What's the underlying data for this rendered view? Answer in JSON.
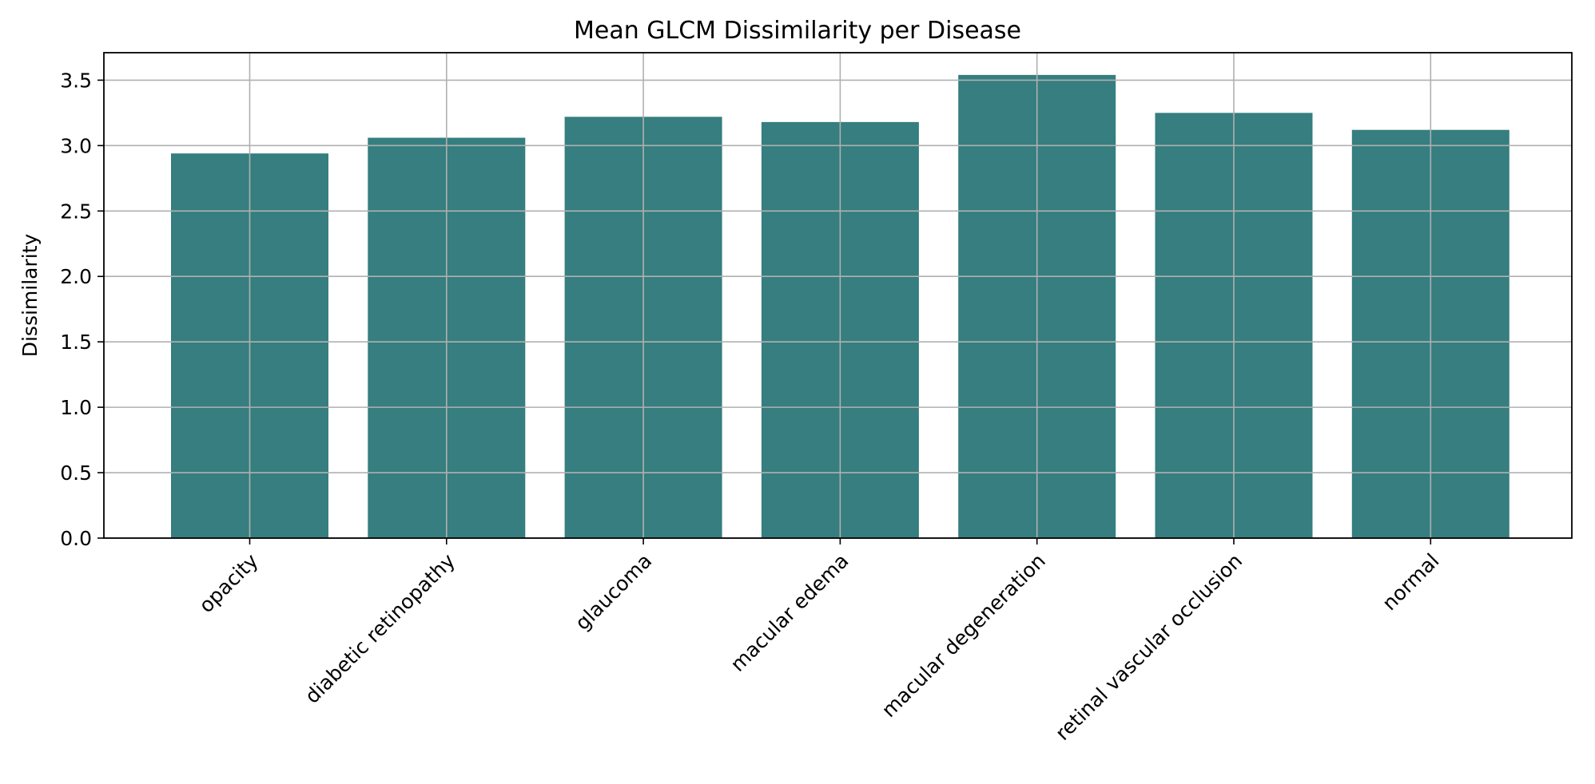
{
  "chart_data": {
    "type": "bar",
    "title": "Mean GLCM Dissimilarity per Disease",
    "xlabel": "",
    "ylabel": "Dissimilarity",
    "categories": [
      "opacity",
      "diabetic retinopathy",
      "glaucoma",
      "macular edema",
      "macular degeneration",
      "retinal vascular occlusion",
      "normal"
    ],
    "values": [
      2.94,
      3.06,
      3.22,
      3.18,
      3.54,
      3.25,
      3.12
    ],
    "ylim": [
      0,
      3.71
    ],
    "yticks": [
      0.0,
      0.5,
      1.0,
      1.5,
      2.0,
      2.5,
      3.0,
      3.5
    ],
    "ytick_labels": [
      "0.0",
      "0.5",
      "1.0",
      "1.5",
      "2.0",
      "2.5",
      "3.0",
      "3.5"
    ],
    "grid": true,
    "legend": "none",
    "bar_color": "#367e7f",
    "grid_color": "#b0b0b0"
  }
}
